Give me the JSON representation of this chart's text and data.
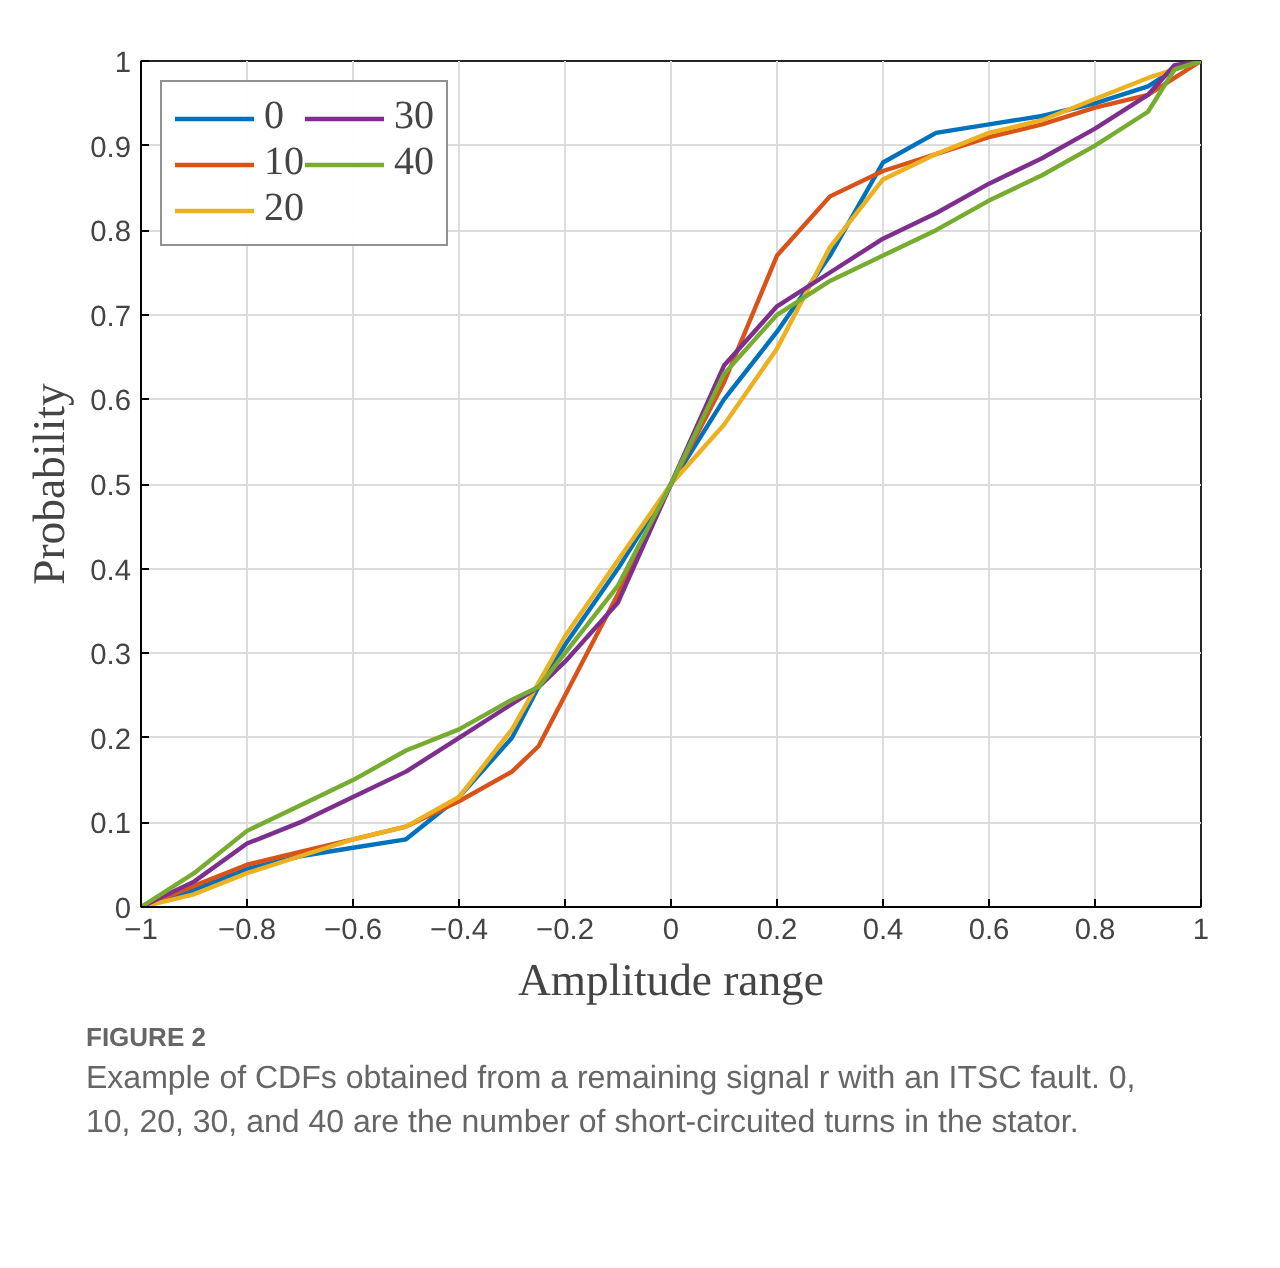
{
  "chart_data": {
    "type": "line",
    "xlabel": "Amplitude range",
    "ylabel": "Probability",
    "x": [
      -1,
      -0.9,
      -0.8,
      -0.7,
      -0.6,
      -0.5,
      -0.4,
      -0.3,
      -0.25,
      -0.2,
      -0.1,
      0,
      0.1,
      0.2,
      0.3,
      0.4,
      0.5,
      0.6,
      0.7,
      0.8,
      0.9,
      0.95,
      1
    ],
    "series": [
      {
        "name": "0",
        "color": "#0072bd",
        "values": [
          0,
          0.02,
          0.045,
          0.06,
          0.07,
          0.08,
          0.13,
          0.2,
          0.26,
          0.31,
          0.4,
          0.5,
          0.6,
          0.68,
          0.77,
          0.88,
          0.915,
          0.925,
          0.935,
          0.95,
          0.97,
          0.99,
          1
        ]
      },
      {
        "name": "10",
        "color": "#d95319",
        "values": [
          0,
          0.025,
          0.05,
          0.065,
          0.08,
          0.095,
          0.125,
          0.16,
          0.19,
          0.25,
          0.37,
          0.5,
          0.62,
          0.77,
          0.84,
          0.87,
          0.89,
          0.91,
          0.925,
          0.945,
          0.96,
          0.98,
          1
        ]
      },
      {
        "name": "20",
        "color": "#edb120",
        "values": [
          0,
          0.015,
          0.04,
          0.06,
          0.08,
          0.095,
          0.13,
          0.21,
          0.265,
          0.32,
          0.41,
          0.5,
          0.57,
          0.66,
          0.78,
          0.86,
          0.89,
          0.915,
          0.93,
          0.955,
          0.98,
          0.99,
          1
        ]
      },
      {
        "name": "30",
        "color": "#7e2f8e",
        "values": [
          0,
          0.03,
          0.075,
          0.1,
          0.13,
          0.16,
          0.2,
          0.24,
          0.26,
          0.29,
          0.36,
          0.5,
          0.64,
          0.71,
          0.75,
          0.79,
          0.82,
          0.855,
          0.885,
          0.92,
          0.96,
          0.995,
          1
        ]
      },
      {
        "name": "40",
        "color": "#77ac30",
        "values": [
          0,
          0.04,
          0.09,
          0.12,
          0.15,
          0.185,
          0.21,
          0.245,
          0.26,
          0.3,
          0.38,
          0.5,
          0.63,
          0.7,
          0.74,
          0.77,
          0.8,
          0.835,
          0.865,
          0.9,
          0.94,
          0.99,
          1
        ]
      }
    ],
    "xlim": [
      -1,
      1
    ],
    "ylim": [
      0,
      1
    ],
    "xticks": [
      -1,
      -0.8,
      -0.6,
      -0.4,
      -0.2,
      0,
      0.2,
      0.4,
      0.6,
      0.8,
      1
    ],
    "yticks": [
      0,
      0.1,
      0.2,
      0.3,
      0.4,
      0.5,
      0.6,
      0.7,
      0.8,
      0.9,
      1
    ],
    "grid": true,
    "legend": "top left",
    "line_style": "solid",
    "marker": "none",
    "annotations": [
      "FIGURE 2",
      "Example of CDFs obtained from a remaining signal r with an ITSC fault. 0, 10, 20, 30, and 40 are the number of short-circuited turns in the stator."
    ]
  }
}
